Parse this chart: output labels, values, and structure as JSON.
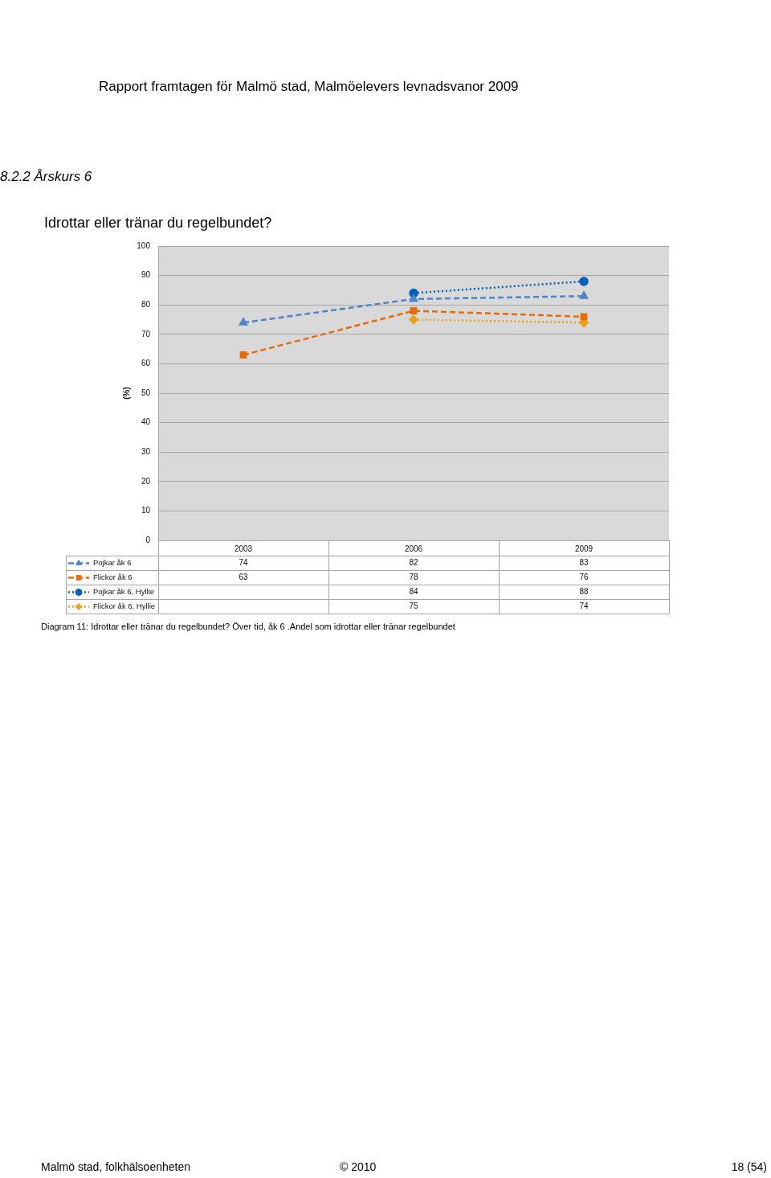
{
  "chart_data": {
    "type": "line",
    "title": "Idrottar eller tränar du regelbundet?",
    "ylabel": "(%)",
    "categories": [
      "2003",
      "2006",
      "2009"
    ],
    "series": [
      {
        "name": "Pojkar åk 6",
        "color": "#5083c8",
        "values": [
          74,
          82,
          83
        ],
        "marker": "triangle",
        "line_style": "dashed"
      },
      {
        "name": "Flickor åk 6",
        "color": "#e36c09",
        "values": [
          63,
          78,
          76
        ],
        "marker": "square",
        "line_style": "dashed"
      },
      {
        "name": "Pojkar åk 6, Hyllie",
        "color": "#0062b8",
        "values": [
          null,
          84,
          88
        ],
        "marker": "circle",
        "line_style": "dotted"
      },
      {
        "name": "Flickor åk 6, Hyllie",
        "color": "#eaa21e",
        "values": [
          null,
          75,
          74
        ],
        "marker": "diamond",
        "line_style": "dotted"
      }
    ],
    "ylim": [
      0,
      100
    ],
    "yticks": [
      0,
      10,
      20,
      30,
      40,
      50,
      60,
      70,
      80,
      90,
      100
    ],
    "grid": "y",
    "legend": "bottom",
    "data_labels": true,
    "annotations": [
      "Rapport framtagen för Malmö stad, Malmöelevers levnadsvanor 2009",
      "8.2.2 Årskurs 6",
      "Diagram 11: Idrottar eller tränar du regelbundet? Över tid, åk 6 .Andel som idrottar eller tränar regelbundet",
      "Malmö stad, folkhälsoenheten",
      "© 2010",
      "18 (54)"
    ]
  }
}
